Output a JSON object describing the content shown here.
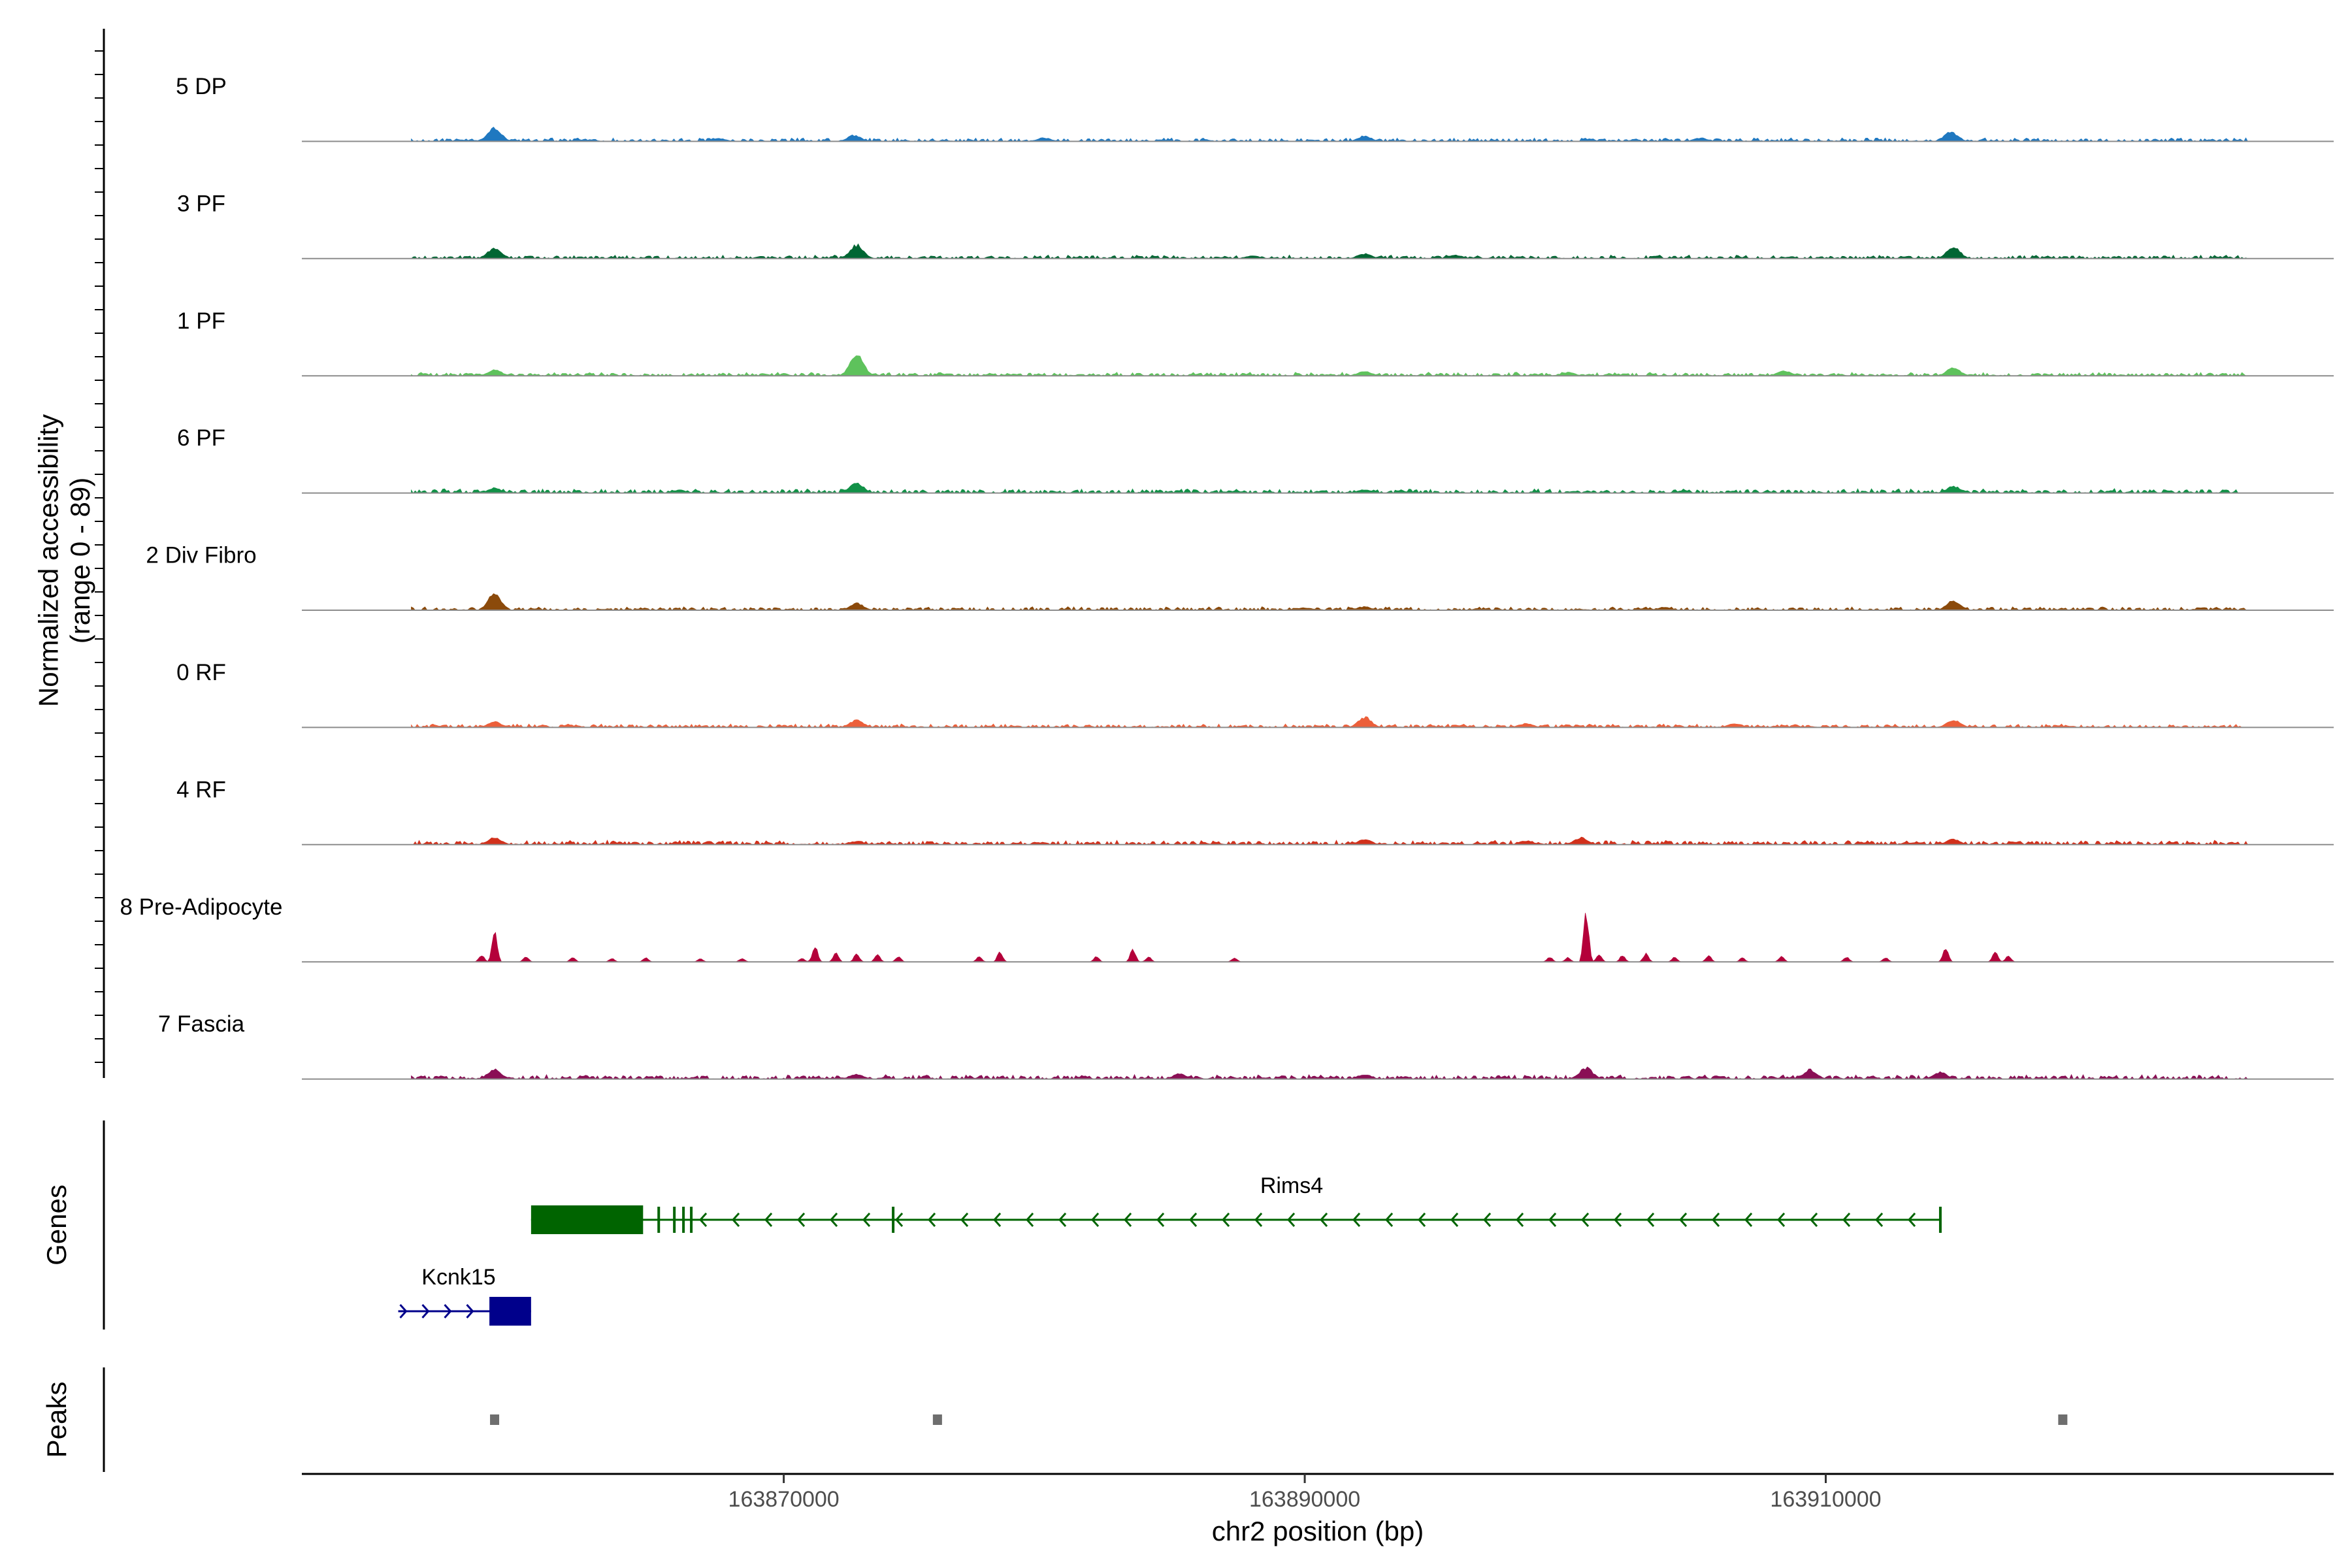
{
  "chart_data": {
    "type": "area",
    "title": "",
    "chromosome": "chr2",
    "xlabel": "chr2 position (bp)",
    "xlim": [
      163851500,
      163929500
    ],
    "x_ticks": [
      163870000,
      163890000,
      163910000
    ],
    "x_tick_labels": [
      "163870000",
      "163890000",
      "163910000"
    ],
    "coverage_ylabel": "Normalized accessibility\n(range 0 - 89)",
    "ylim": [
      0,
      89
    ],
    "genes_label": "Genes",
    "peaks_label": "Peaks",
    "tracks": [
      {
        "name": "5 DP",
        "color": "#1f78c0",
        "baseline": 8,
        "peaks": [
          [
            163858900,
            55
          ],
          [
            163872700,
            25
          ],
          [
            163892300,
            22
          ],
          [
            163914800,
            38
          ],
          [
            163867500,
            12
          ],
          [
            163880000,
            14
          ],
          [
            163905200,
            14
          ]
        ]
      },
      {
        "name": "3 PF",
        "color": "#006633",
        "baseline": 8,
        "peaks": [
          [
            163858900,
            45
          ],
          [
            163872800,
            55
          ],
          [
            163892300,
            20
          ],
          [
            163914900,
            48
          ],
          [
            163895800,
            14
          ],
          [
            163888000,
            12
          ]
        ]
      },
      {
        "name": "1 PF",
        "color": "#5ec25c",
        "baseline": 8,
        "peaks": [
          [
            163858900,
            25
          ],
          [
            163872800,
            92
          ],
          [
            163892300,
            18
          ],
          [
            163914900,
            32
          ],
          [
            163908400,
            20
          ],
          [
            163900100,
            14
          ]
        ]
      },
      {
        "name": "6 PF",
        "color": "#119147",
        "baseline": 10,
        "peaks": [
          [
            163858900,
            20
          ],
          [
            163872800,
            42
          ],
          [
            163892300,
            14
          ],
          [
            163914900,
            28
          ],
          [
            163866000,
            12
          ]
        ]
      },
      {
        "name": "2 Div Fibro",
        "color": "#8b4a0b",
        "baseline": 8,
        "peaks": [
          [
            163858900,
            68
          ],
          [
            163872800,
            28
          ],
          [
            163892300,
            14
          ],
          [
            163914900,
            38
          ],
          [
            163890000,
            10
          ],
          [
            163903800,
            12
          ]
        ]
      },
      {
        "name": "0 RF",
        "color": "#ec5f3a",
        "baseline": 8,
        "peaks": [
          [
            163858900,
            22
          ],
          [
            163872800,
            30
          ],
          [
            163892300,
            42
          ],
          [
            163914900,
            30
          ],
          [
            163898500,
            16
          ],
          [
            163906500,
            16
          ]
        ]
      },
      {
        "name": "4 RF",
        "color": "#d2301b",
        "baseline": 10,
        "peaks": [
          [
            163858900,
            28
          ],
          [
            163872800,
            14
          ],
          [
            163892300,
            22
          ],
          [
            163900600,
            28
          ],
          [
            163914900,
            22
          ],
          [
            163898500,
            16
          ]
        ]
      },
      {
        "name": "8 Pre-Adipocyte",
        "color": "#b4003a",
        "baseline": 0,
        "peaks": [
          [
            163858400,
            28
          ],
          [
            163858900,
            118
          ],
          [
            163860100,
            22
          ],
          [
            163861900,
            18
          ],
          [
            163863400,
            14
          ],
          [
            163864700,
            16
          ],
          [
            163866800,
            12
          ],
          [
            163868400,
            14
          ],
          [
            163870700,
            14
          ],
          [
            163871200,
            64
          ],
          [
            163872000,
            38
          ],
          [
            163872800,
            34
          ],
          [
            163873600,
            30
          ],
          [
            163874400,
            22
          ],
          [
            163877500,
            20
          ],
          [
            163878300,
            40
          ],
          [
            163882000,
            22
          ],
          [
            163883400,
            52
          ],
          [
            163884000,
            20
          ],
          [
            163887300,
            16
          ],
          [
            163899400,
            20
          ],
          [
            163900100,
            18
          ],
          [
            163900800,
            190
          ],
          [
            163901300,
            30
          ],
          [
            163902200,
            26
          ],
          [
            163903100,
            32
          ],
          [
            163904200,
            18
          ],
          [
            163905500,
            26
          ],
          [
            163906800,
            16
          ],
          [
            163908300,
            22
          ],
          [
            163910800,
            20
          ],
          [
            163912300,
            16
          ],
          [
            163914600,
            60
          ],
          [
            163916500,
            40
          ],
          [
            163917000,
            24
          ]
        ]
      },
      {
        "name": "7 Fascia",
        "color": "#8a0f55",
        "baseline": 10,
        "peaks": [
          [
            163858900,
            40
          ],
          [
            163872800,
            18
          ],
          [
            163885200,
            22
          ],
          [
            163892300,
            18
          ],
          [
            163900800,
            45
          ],
          [
            163909400,
            38
          ],
          [
            163914400,
            28
          ]
        ]
      }
    ],
    "genes": [
      {
        "name": "Rims4",
        "strand": "-",
        "start": 163860300,
        "end": 163914400,
        "color": "#006400",
        "utr": [
          163860300,
          163864600
        ],
        "exons": [
          163865200,
          163865800,
          163866150,
          163866450,
          163874200,
          163914400
        ]
      },
      {
        "name": "Kcnk15",
        "strand": "+",
        "start": 163855200,
        "end": 163860300,
        "color": "#00008b",
        "exons": [
          [
            163858700,
            163860300
          ]
        ]
      }
    ],
    "peaks": [
      163858900,
      163875900,
      163919100
    ]
  }
}
